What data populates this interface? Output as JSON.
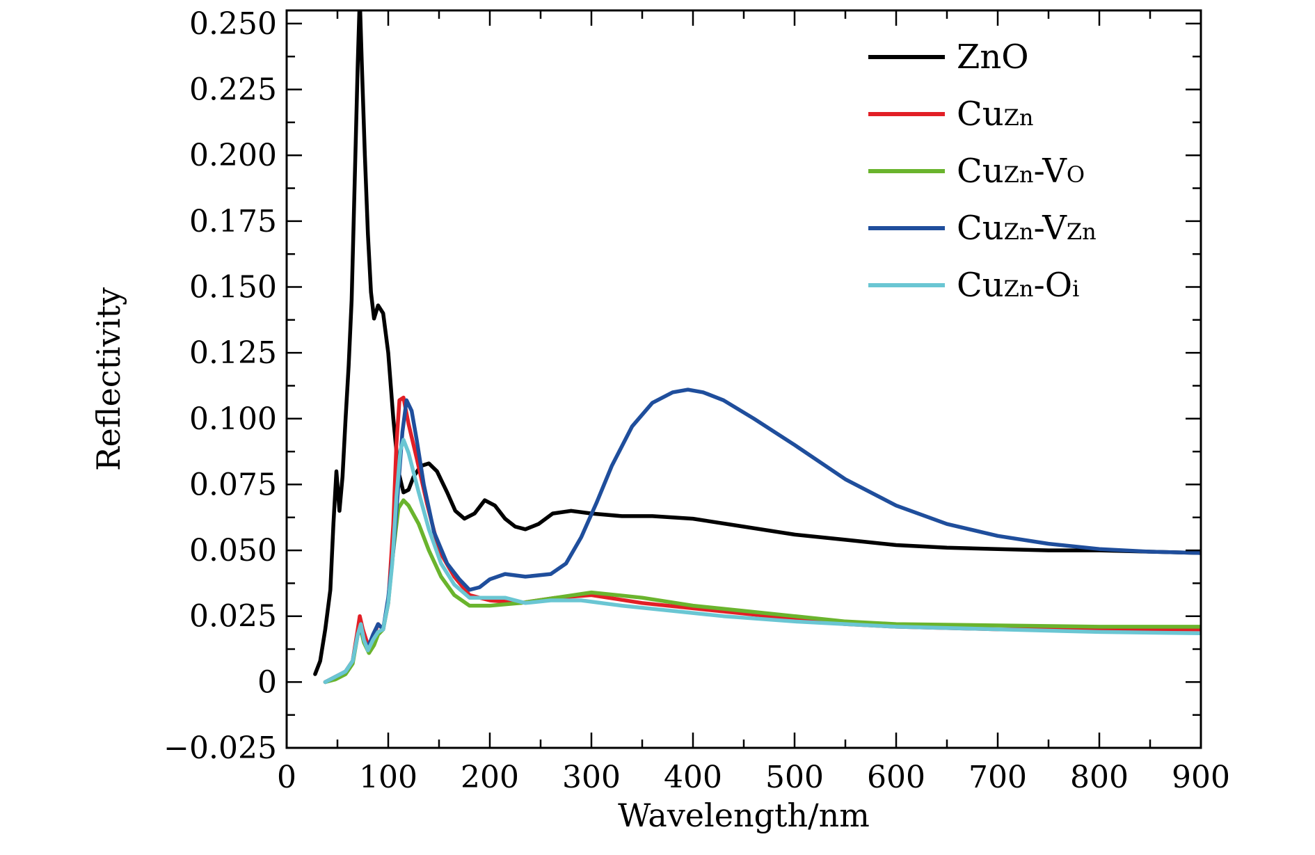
{
  "chart_data": {
    "type": "line",
    "title": "",
    "xlabel": "Wavelength/nm",
    "ylabel": "Reflectivity",
    "xlim": [
      0,
      900
    ],
    "ylim": [
      -0.025,
      0.255
    ],
    "x_ticks": [
      0,
      100,
      200,
      300,
      400,
      500,
      600,
      700,
      800,
      900
    ],
    "x_tick_labels": [
      "0",
      "100",
      "200",
      "300",
      "400",
      "500",
      "600",
      "700",
      "800",
      "900"
    ],
    "y_ticks": [
      -0.025,
      0,
      0.025,
      0.05,
      0.075,
      0.1,
      0.125,
      0.15,
      0.175,
      0.2,
      0.225,
      0.25
    ],
    "y_tick_labels": [
      "−0.025",
      "0",
      "0.025",
      "0.050",
      "0.075",
      "0.100",
      "0.125",
      "0.150",
      "0.175",
      "0.200",
      "0.225",
      "0.250"
    ],
    "grid": false,
    "legend_position": "top-right",
    "series": [
      {
        "name": "ZnO",
        "label_main": "ZnO",
        "label_sub": "",
        "label_main2": "",
        "label_sub2": "",
        "color": "#000000",
        "points": [
          [
            28,
            0.003
          ],
          [
            33,
            0.008
          ],
          [
            38,
            0.02
          ],
          [
            43,
            0.035
          ],
          [
            46,
            0.06
          ],
          [
            49,
            0.08
          ],
          [
            52,
            0.065
          ],
          [
            55,
            0.078
          ],
          [
            58,
            0.1
          ],
          [
            61,
            0.12
          ],
          [
            64,
            0.145
          ],
          [
            67,
            0.19
          ],
          [
            70,
            0.235
          ],
          [
            72,
            0.26
          ],
          [
            74,
            0.235
          ],
          [
            77,
            0.2
          ],
          [
            80,
            0.17
          ],
          [
            83,
            0.148
          ],
          [
            86,
            0.138
          ],
          [
            90,
            0.143
          ],
          [
            95,
            0.14
          ],
          [
            100,
            0.125
          ],
          [
            105,
            0.1
          ],
          [
            110,
            0.08
          ],
          [
            115,
            0.072
          ],
          [
            120,
            0.073
          ],
          [
            125,
            0.078
          ],
          [
            132,
            0.082
          ],
          [
            140,
            0.083
          ],
          [
            148,
            0.08
          ],
          [
            158,
            0.072
          ],
          [
            166,
            0.065
          ],
          [
            175,
            0.062
          ],
          [
            185,
            0.064
          ],
          [
            195,
            0.069
          ],
          [
            205,
            0.067
          ],
          [
            215,
            0.062
          ],
          [
            225,
            0.059
          ],
          [
            235,
            0.058
          ],
          [
            248,
            0.06
          ],
          [
            262,
            0.064
          ],
          [
            280,
            0.065
          ],
          [
            300,
            0.064
          ],
          [
            330,
            0.063
          ],
          [
            360,
            0.063
          ],
          [
            400,
            0.062
          ],
          [
            450,
            0.059
          ],
          [
            500,
            0.056
          ],
          [
            550,
            0.054
          ],
          [
            600,
            0.052
          ],
          [
            650,
            0.051
          ],
          [
            700,
            0.0505
          ],
          [
            750,
            0.05
          ],
          [
            800,
            0.05
          ],
          [
            850,
            0.0495
          ],
          [
            900,
            0.049
          ]
        ]
      },
      {
        "name": "CuZn",
        "label_main": "Cu",
        "label_sub": "Zn",
        "label_main2": "",
        "label_sub2": "",
        "color": "#e21f26",
        "points": [
          [
            38,
            0.0
          ],
          [
            48,
            0.002
          ],
          [
            58,
            0.004
          ],
          [
            65,
            0.008
          ],
          [
            70,
            0.02
          ],
          [
            72,
            0.025
          ],
          [
            75,
            0.02
          ],
          [
            80,
            0.014
          ],
          [
            85,
            0.017
          ],
          [
            90,
            0.022
          ],
          [
            95,
            0.02
          ],
          [
            100,
            0.03
          ],
          [
            105,
            0.06
          ],
          [
            108,
            0.09
          ],
          [
            111,
            0.107
          ],
          [
            115,
            0.108
          ],
          [
            120,
            0.098
          ],
          [
            128,
            0.085
          ],
          [
            138,
            0.068
          ],
          [
            150,
            0.05
          ],
          [
            165,
            0.04
          ],
          [
            180,
            0.033
          ],
          [
            200,
            0.031
          ],
          [
            230,
            0.03
          ],
          [
            265,
            0.032
          ],
          [
            300,
            0.033
          ],
          [
            350,
            0.03
          ],
          [
            400,
            0.028
          ],
          [
            450,
            0.026
          ],
          [
            500,
            0.024
          ],
          [
            550,
            0.022
          ],
          [
            600,
            0.021
          ],
          [
            700,
            0.02
          ],
          [
            800,
            0.02
          ],
          [
            900,
            0.02
          ]
        ]
      },
      {
        "name": "CuZn-VO",
        "label_main": "Cu",
        "label_sub": "Zn",
        "label_main2": "-V",
        "label_sub2": "O",
        "color": "#6ab42d",
        "points": [
          [
            38,
            0.0
          ],
          [
            48,
            0.001
          ],
          [
            58,
            0.003
          ],
          [
            65,
            0.007
          ],
          [
            70,
            0.018
          ],
          [
            73,
            0.02
          ],
          [
            76,
            0.015
          ],
          [
            81,
            0.011
          ],
          [
            86,
            0.014
          ],
          [
            90,
            0.018
          ],
          [
            95,
            0.02
          ],
          [
            100,
            0.03
          ],
          [
            105,
            0.05
          ],
          [
            110,
            0.066
          ],
          [
            115,
            0.069
          ],
          [
            120,
            0.067
          ],
          [
            130,
            0.06
          ],
          [
            140,
            0.05
          ],
          [
            152,
            0.04
          ],
          [
            165,
            0.033
          ],
          [
            180,
            0.029
          ],
          [
            200,
            0.029
          ],
          [
            230,
            0.03
          ],
          [
            265,
            0.032
          ],
          [
            300,
            0.034
          ],
          [
            350,
            0.032
          ],
          [
            400,
            0.029
          ],
          [
            450,
            0.027
          ],
          [
            500,
            0.025
          ],
          [
            550,
            0.023
          ],
          [
            600,
            0.022
          ],
          [
            700,
            0.0215
          ],
          [
            800,
            0.021
          ],
          [
            900,
            0.021
          ]
        ]
      },
      {
        "name": "CuZn-VZn",
        "label_main": "Cu",
        "label_sub": "Zn",
        "label_main2": "-V",
        "label_sub2": "Zn",
        "color": "#1f4e9c",
        "points": [
          [
            38,
            0.0
          ],
          [
            48,
            0.002
          ],
          [
            58,
            0.004
          ],
          [
            65,
            0.008
          ],
          [
            70,
            0.018
          ],
          [
            73,
            0.021
          ],
          [
            76,
            0.016
          ],
          [
            80,
            0.013
          ],
          [
            85,
            0.018
          ],
          [
            90,
            0.022
          ],
          [
            95,
            0.02
          ],
          [
            100,
            0.032
          ],
          [
            105,
            0.05
          ],
          [
            110,
            0.075
          ],
          [
            114,
            0.095
          ],
          [
            118,
            0.107
          ],
          [
            123,
            0.103
          ],
          [
            128,
            0.092
          ],
          [
            135,
            0.075
          ],
          [
            145,
            0.057
          ],
          [
            158,
            0.045
          ],
          [
            170,
            0.039
          ],
          [
            180,
            0.035
          ],
          [
            190,
            0.036
          ],
          [
            200,
            0.039
          ],
          [
            215,
            0.041
          ],
          [
            235,
            0.04
          ],
          [
            260,
            0.041
          ],
          [
            275,
            0.045
          ],
          [
            290,
            0.055
          ],
          [
            305,
            0.068
          ],
          [
            320,
            0.082
          ],
          [
            340,
            0.097
          ],
          [
            360,
            0.106
          ],
          [
            380,
            0.11
          ],
          [
            395,
            0.111
          ],
          [
            410,
            0.11
          ],
          [
            430,
            0.107
          ],
          [
            460,
            0.1
          ],
          [
            500,
            0.09
          ],
          [
            550,
            0.077
          ],
          [
            600,
            0.067
          ],
          [
            650,
            0.06
          ],
          [
            700,
            0.0555
          ],
          [
            750,
            0.0525
          ],
          [
            800,
            0.0505
          ],
          [
            850,
            0.0495
          ],
          [
            900,
            0.049
          ]
        ]
      },
      {
        "name": "CuZn-Oi",
        "label_main": "Cu",
        "label_sub": "Zn",
        "label_main2": "-O",
        "label_sub2": "i",
        "color": "#6ac6d3",
        "points": [
          [
            38,
            0.0
          ],
          [
            48,
            0.002
          ],
          [
            58,
            0.004
          ],
          [
            65,
            0.008
          ],
          [
            70,
            0.018
          ],
          [
            73,
            0.022
          ],
          [
            76,
            0.016
          ],
          [
            80,
            0.012
          ],
          [
            85,
            0.016
          ],
          [
            90,
            0.019
          ],
          [
            95,
            0.02
          ],
          [
            100,
            0.03
          ],
          [
            104,
            0.045
          ],
          [
            108,
            0.07
          ],
          [
            112,
            0.088
          ],
          [
            115,
            0.092
          ],
          [
            120,
            0.087
          ],
          [
            130,
            0.072
          ],
          [
            140,
            0.058
          ],
          [
            152,
            0.045
          ],
          [
            165,
            0.037
          ],
          [
            180,
            0.032
          ],
          [
            200,
            0.032
          ],
          [
            215,
            0.032
          ],
          [
            235,
            0.03
          ],
          [
            260,
            0.031
          ],
          [
            290,
            0.031
          ],
          [
            330,
            0.029
          ],
          [
            380,
            0.027
          ],
          [
            430,
            0.025
          ],
          [
            500,
            0.023
          ],
          [
            550,
            0.022
          ],
          [
            600,
            0.021
          ],
          [
            700,
            0.02
          ],
          [
            800,
            0.019
          ],
          [
            900,
            0.0185
          ]
        ]
      }
    ]
  }
}
